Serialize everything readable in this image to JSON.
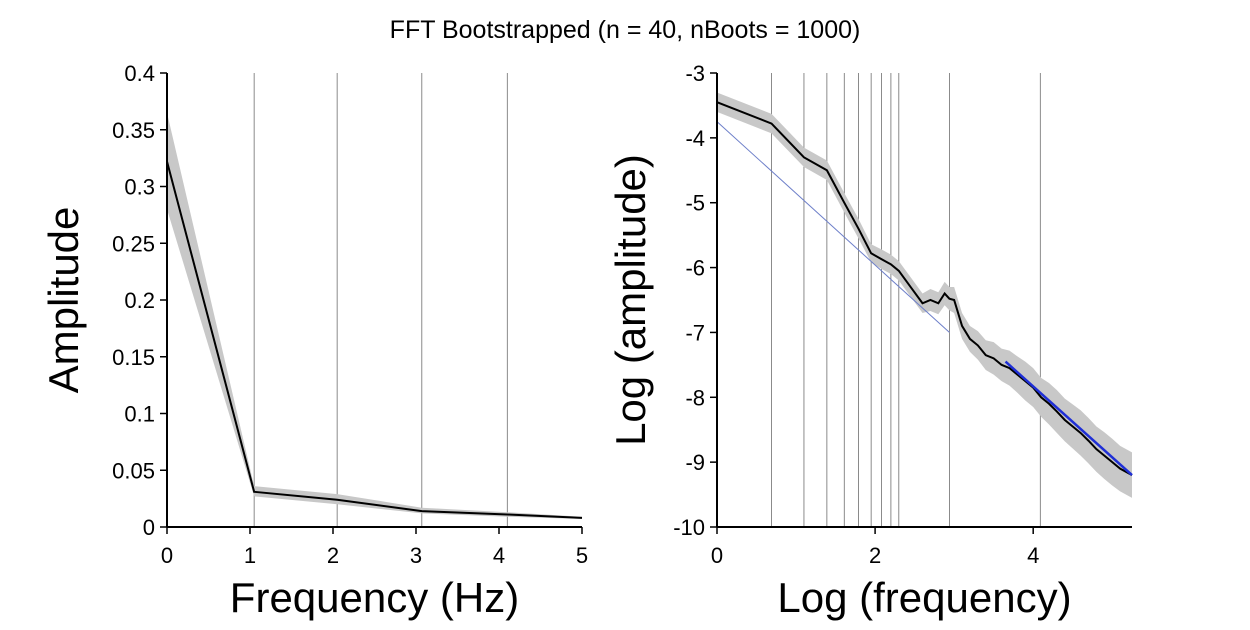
{
  "figure": {
    "title": "FFT Bootstrapped (n = 40, nBoots = 1000)"
  },
  "chart_data": [
    {
      "type": "line",
      "xlabel": "Frequency (Hz)",
      "ylabel": "Amplitude",
      "xlim": [
        0,
        5
      ],
      "ylim": [
        0,
        0.4
      ],
      "xticks": [
        0,
        1,
        2,
        3,
        4,
        5
      ],
      "xtick_labels": [
        "0",
        "1",
        "2",
        "3",
        "4",
        "5"
      ],
      "yticks": [
        0,
        0.05,
        0.1,
        0.15,
        0.2,
        0.25,
        0.3,
        0.35,
        0.4
      ],
      "ytick_labels": [
        "0",
        "0.05",
        "0.1",
        "0.15",
        "0.2",
        "0.25",
        "0.3",
        "0.35",
        "0.4"
      ],
      "vlines": [
        1.05,
        2.05,
        3.07,
        4.1
      ],
      "series": [
        {
          "line_color": "#000000",
          "band_color": "#c8c8c8",
          "x": [
            0,
            1.05,
            2.05,
            3.07,
            4.1,
            5
          ],
          "y": [
            0.322,
            0.031,
            0.024,
            0.014,
            0.011,
            0.008
          ],
          "y_lower": [
            0.28,
            0.027,
            0.02,
            0.012,
            0.009,
            0.007
          ],
          "y_upper": [
            0.365,
            0.036,
            0.029,
            0.017,
            0.013,
            0.009
          ]
        }
      ]
    },
    {
      "type": "line",
      "xlabel": "Log (frequency)",
      "ylabel": "Log (amplitude)",
      "xlim": [
        0,
        5.25
      ],
      "ylim": [
        -10,
        -3
      ],
      "xticks": [
        0,
        2,
        4
      ],
      "xtick_labels": [
        "0",
        "2",
        "4"
      ],
      "yticks": [
        -10,
        -9,
        -8,
        -7,
        -6,
        -5,
        -4,
        -3
      ],
      "ytick_labels": [
        "-10",
        "-9",
        "-8",
        "-7",
        "-6",
        "-5",
        "-4",
        "-3"
      ],
      "vlines": [
        0.69,
        1.1,
        1.39,
        1.61,
        1.79,
        1.95,
        2.08,
        2.2,
        2.3,
        2.94,
        4.09
      ],
      "series": [
        {
          "line_color": "#000000",
          "band_color": "#c8c8c8",
          "x": [
            0,
            0.69,
            1.1,
            1.39,
            1.61,
            1.79,
            1.95,
            2.08,
            2.2,
            2.3,
            2.45,
            2.6,
            2.7,
            2.8,
            2.88,
            2.94,
            3.0,
            3.1,
            3.2,
            3.3,
            3.4,
            3.5,
            3.6,
            3.7,
            3.8,
            3.9,
            4.0,
            4.1,
            4.2,
            4.3,
            4.4,
            4.5,
            4.6,
            4.7,
            4.8,
            4.9,
            5.0,
            5.1,
            5.25
          ],
          "y": [
            -3.45,
            -3.78,
            -4.3,
            -4.5,
            -5.0,
            -5.4,
            -5.78,
            -5.87,
            -5.95,
            -6.05,
            -6.3,
            -6.55,
            -6.5,
            -6.55,
            -6.4,
            -6.48,
            -6.5,
            -6.9,
            -7.1,
            -7.2,
            -7.35,
            -7.4,
            -7.5,
            -7.55,
            -7.65,
            -7.75,
            -7.85,
            -8.0,
            -8.1,
            -8.22,
            -8.35,
            -8.45,
            -8.55,
            -8.67,
            -8.8,
            -8.9,
            -9.0,
            -9.1,
            -9.2
          ],
          "y_lower": [
            -3.6,
            -3.93,
            -4.45,
            -4.65,
            -5.15,
            -5.55,
            -5.92,
            -6.02,
            -6.1,
            -6.2,
            -6.45,
            -6.7,
            -6.67,
            -6.72,
            -6.58,
            -6.66,
            -6.7,
            -7.1,
            -7.3,
            -7.42,
            -7.58,
            -7.65,
            -7.75,
            -7.82,
            -7.93,
            -8.05,
            -8.15,
            -8.3,
            -8.42,
            -8.55,
            -8.68,
            -8.79,
            -8.9,
            -9.02,
            -9.15,
            -9.26,
            -9.36,
            -9.45,
            -9.55
          ],
          "y_upper": [
            -3.3,
            -3.63,
            -4.15,
            -4.35,
            -4.85,
            -5.25,
            -5.64,
            -5.72,
            -5.8,
            -5.9,
            -6.15,
            -6.4,
            -6.33,
            -6.38,
            -6.22,
            -6.3,
            -6.3,
            -6.7,
            -6.9,
            -6.98,
            -7.12,
            -7.15,
            -7.25,
            -7.28,
            -7.37,
            -7.45,
            -7.55,
            -7.7,
            -7.78,
            -7.89,
            -8.02,
            -8.11,
            -8.2,
            -8.32,
            -8.45,
            -8.54,
            -8.64,
            -8.75,
            -8.85
          ]
        },
        {
          "line_color": "#6d7fc9",
          "x": [
            0,
            2.94
          ],
          "y": [
            -3.75,
            -7.0
          ]
        },
        {
          "line_color": "#1f2fd6",
          "x": [
            3.65,
            5.25
          ],
          "y": [
            -7.45,
            -9.2
          ]
        }
      ]
    }
  ]
}
